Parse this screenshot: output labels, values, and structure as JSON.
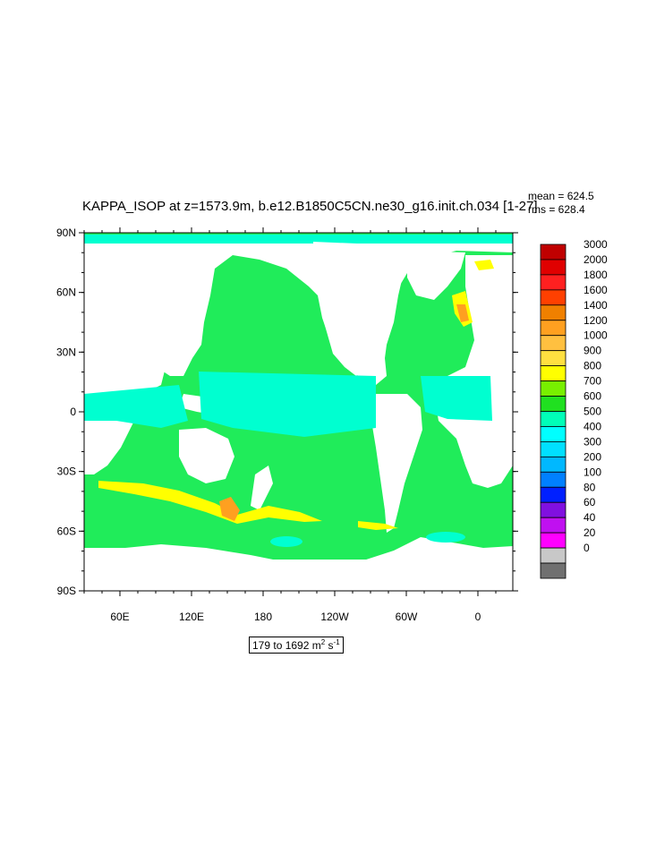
{
  "title": "KAPPA_ISOP at z=1573.9m, b.e12.B1850C5CN.ne30_g16.init.ch.034 [1-27]",
  "stats": {
    "mean": "mean = 624.5",
    "rms": "rms = 628.4"
  },
  "range": {
    "text": "179 to 1692 m",
    "sup1": "2",
    "mid": " s",
    "sup2": "-1"
  },
  "axes": {
    "lat_labels": [
      "90N",
      "60N",
      "30N",
      "0",
      "30S",
      "60S",
      "90S"
    ],
    "lon_labels": [
      "60E",
      "120E",
      "180",
      "120W",
      "60W",
      "0"
    ]
  },
  "colorbar": {
    "levels": [
      "3000",
      "2000",
      "1800",
      "1600",
      "1400",
      "1200",
      "1000",
      "900",
      "800",
      "700",
      "600",
      "500",
      "400",
      "300",
      "200",
      "100",
      "80",
      "60",
      "40",
      "20",
      "0"
    ],
    "colors": [
      "#c00000",
      "#e00000",
      "#ff2020",
      "#ff4000",
      "#f08000",
      "#ffa020",
      "#ffc040",
      "#ffe040",
      "#ffff00",
      "#78f000",
      "#20e020",
      "#00ffb8",
      "#00ffff",
      "#00e0ff",
      "#00b8ff",
      "#0080ff",
      "#0020ff",
      "#8010e0",
      "#c010f0",
      "#ff00ff",
      "#c8c8c8",
      "#707070"
    ]
  },
  "colors": {
    "ocean_green": "#20ec5a",
    "cyan": "#00ffd0",
    "yellow": "#ffff00",
    "orange": "#ffa020",
    "land": "#ffffff"
  }
}
